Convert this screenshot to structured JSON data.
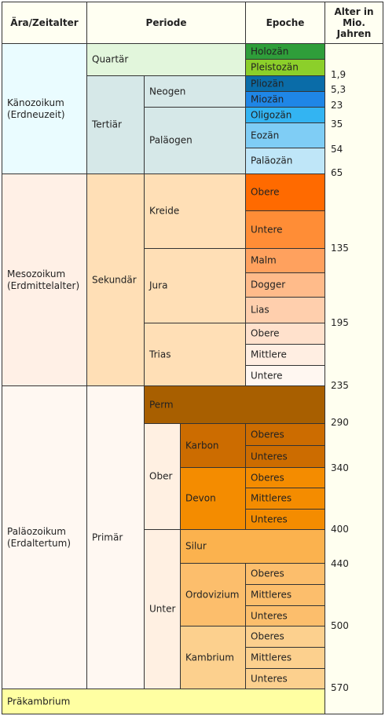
{
  "header": {
    "era": "Ära/Zeitalter",
    "period": "Periode",
    "epoch": "Epoche",
    "age": "Alter in Mio. Jahren"
  },
  "eras": [
    "Känozoikum\n(Erdneuzeit)",
    "Mesozoikum\n(Erdmittelalter)",
    "Paläozoikum\n(Erdaltertum)"
  ],
  "precambrian": "Präkambrium",
  "periods": [
    "Quartär",
    "Tertiär",
    "Sekundär",
    "Primär"
  ],
  "subperiods": [
    "Neogen",
    "Paläogen",
    "Kreide",
    "Jura",
    "Trias",
    "Perm",
    "Ober",
    "Unter",
    "Karbon",
    "Devon",
    "Silur",
    "Ordovizium",
    "Kambrium"
  ],
  "epochs": [
    "Holozän",
    "Pleistozän",
    "Pliozän",
    "Miozän",
    "Oligozän",
    "Eozän",
    "Paläozän",
    "Obere",
    "Untere",
    "Malm",
    "Dogger",
    "Lias",
    "Obere",
    "Mittlere",
    "Untere",
    "Oberes",
    "Unteres",
    "Oberes",
    "Mittleres",
    "Unteres",
    "Oberes",
    "Mittleres",
    "Unteres",
    "Oberes",
    "Mittleres",
    "Unteres"
  ],
  "ages": [
    "1,9",
    "5,3",
    "23",
    "35",
    "54",
    "65",
    "135",
    "195",
    "235",
    "290",
    "340",
    "400",
    "440",
    "500",
    "570"
  ],
  "colors": {
    "holozaen": "#2f9e3a",
    "pleistozaen": "#8ccf2a",
    "pliozaen": "#0a6ca8",
    "miozaen": "#1f86e6",
    "oligozaen": "#33b4f2",
    "eozaen": "#7fcdf5",
    "palaeozaen": "#bfe6f8",
    "kreide_obere": "#ff6a00",
    "kreide_untere": "#ff8d36",
    "malm": "#ffa15e",
    "dogger": "#ffbb8a",
    "lias": "#ffcfad",
    "trias_obere": "#ffe1cc",
    "trias_mittlere": "#ffeee2",
    "trias_untere": "#fff7f1",
    "perm": "#a85f00",
    "karbon": "#cc6c00",
    "devon": "#f48c00",
    "silur": "#fbb24e",
    "ordovizium": "#fcbe6c",
    "kambrium": "#fcd08e",
    "kaeno": "#eafcff",
    "meso": "#fff0e6",
    "palaeo": "#fff8f2",
    "prae": "#ffffa2"
  }
}
